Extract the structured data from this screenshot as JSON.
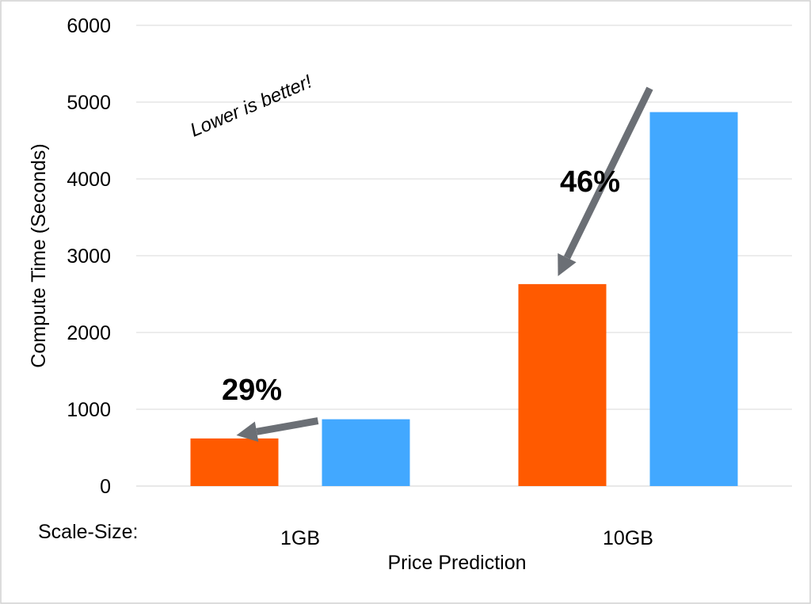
{
  "chart_data": {
    "type": "bar",
    "xlabel": "Price Prediction",
    "ylabel": "Compute Time (Seconds)",
    "category_prefix": "Scale-Size:",
    "categories": [
      "1GB",
      "10GB"
    ],
    "series": [
      {
        "color": "#ff5a00",
        "values": [
          620,
          2630
        ]
      },
      {
        "color": "#42a8ff",
        "values": [
          870,
          4870
        ]
      }
    ],
    "ylim": [
      0,
      6000
    ],
    "yticks": [
      0,
      1000,
      2000,
      3000,
      4000,
      5000,
      6000
    ],
    "grid": true,
    "legend": "none",
    "annotations": {
      "note": "Lower is better!",
      "reductions": [
        "29%",
        "46%"
      ]
    },
    "colors": {
      "arrow": "#6b6f75",
      "grid": "#d9d9d9"
    }
  }
}
